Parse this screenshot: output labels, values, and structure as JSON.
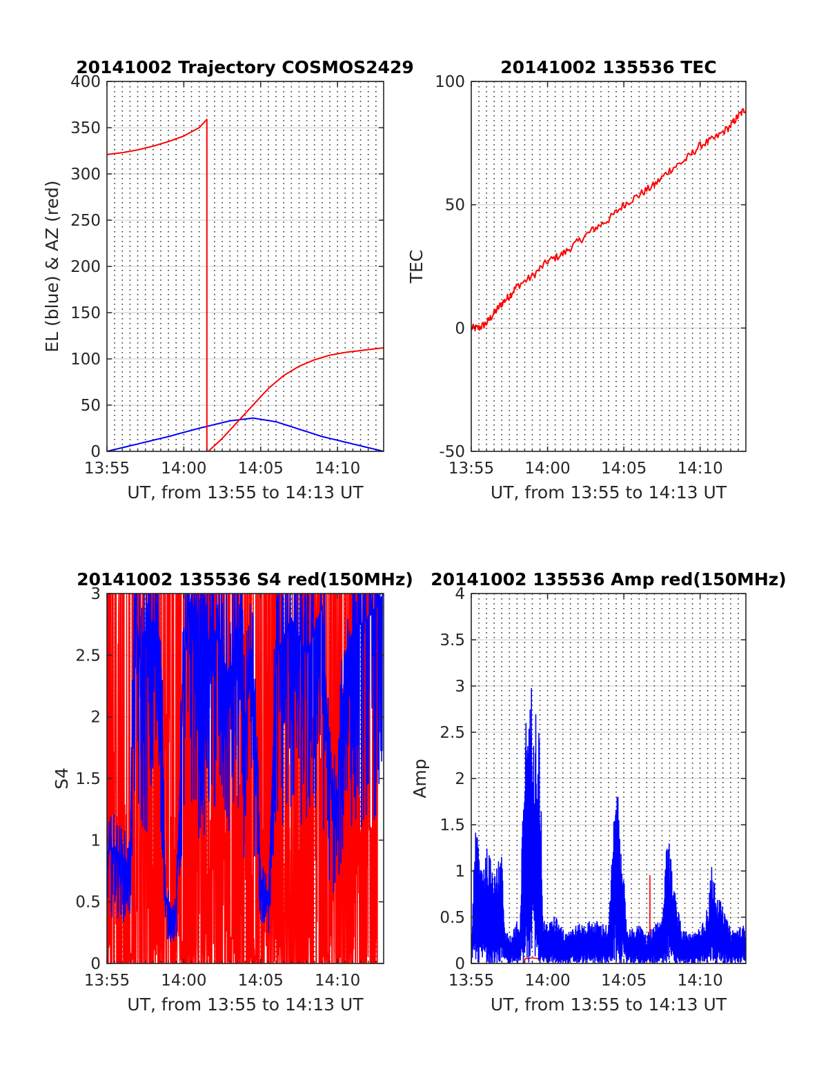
{
  "chart_data": [
    {
      "type": "line",
      "title": "20141002 Trajectory COSMOS2429",
      "xlabel": "UT, from 13:55 to 14:13 UT",
      "ylabel": "EL (blue) & AZ (red)",
      "x_unit": "minutes after 13:55 UT",
      "xlim": [
        0,
        18
      ],
      "ylim": [
        0,
        400
      ],
      "x_ticks": [
        {
          "value": 0,
          "label": "13:55"
        },
        {
          "value": 5,
          "label": "14:00"
        },
        {
          "value": 10,
          "label": "14:05"
        },
        {
          "value": 15,
          "label": "14:10"
        }
      ],
      "y_ticks": [
        {
          "value": 0,
          "label": "0"
        },
        {
          "value": 50,
          "label": "50"
        },
        {
          "value": 100,
          "label": "100"
        },
        {
          "value": 150,
          "label": "150"
        },
        {
          "value": 200,
          "label": "200"
        },
        {
          "value": 250,
          "label": "250"
        },
        {
          "value": 300,
          "label": "300"
        },
        {
          "value": 350,
          "label": "350"
        },
        {
          "value": 400,
          "label": "400"
        }
      ],
      "grid": {
        "x": "dotted every 0.5 min",
        "y": "solid light"
      },
      "series": [
        {
          "color": "#0000ff",
          "x": [
            0,
            2,
            4,
            6,
            8,
            9.5,
            11,
            12.5,
            14,
            16,
            18
          ],
          "y": [
            0,
            8,
            16,
            25,
            33,
            36,
            32,
            24,
            16,
            8,
            0
          ]
        },
        {
          "color": "#ff0000",
          "x": [
            0,
            1,
            2,
            3,
            4,
            5,
            6,
            6.5,
            6.5,
            6.6,
            7.5,
            8.5,
            9.5,
            10.5,
            11.5,
            12.5,
            13.5,
            14.5,
            15.5,
            16.5,
            17.5,
            18
          ],
          "y": [
            321,
            323,
            326,
            330,
            335,
            341,
            350,
            359,
            0,
            0,
            14,
            32,
            50,
            68,
            82,
            92,
            99,
            104,
            107,
            109,
            111,
            112
          ]
        }
      ]
    },
    {
      "type": "line",
      "title": "20141002 135536 TEC",
      "xlabel": "UT, from 13:55 to 14:13 UT",
      "ylabel": "TEC",
      "x_unit": "minutes after 13:55 UT",
      "xlim": [
        0,
        18
      ],
      "ylim": [
        -50,
        100
      ],
      "x_ticks": [
        {
          "value": 0,
          "label": "13:55"
        },
        {
          "value": 5,
          "label": "14:00"
        },
        {
          "value": 10,
          "label": "14:05"
        },
        {
          "value": 15,
          "label": "14:10"
        }
      ],
      "y_ticks": [
        {
          "value": -50,
          "label": "-50"
        },
        {
          "value": 0,
          "label": "0"
        },
        {
          "value": 50,
          "label": "50"
        },
        {
          "value": 100,
          "label": "100"
        }
      ],
      "grid": {
        "x": "dotted every 0.5 min",
        "y": "solid light"
      },
      "series": [
        {
          "color": "#ff0000",
          "x": [
            0,
            0.5,
            1,
            1.5,
            2,
            2.5,
            3,
            4,
            5,
            6,
            7,
            8,
            9,
            10,
            11,
            12,
            13,
            14,
            15,
            16,
            17,
            17.5,
            18
          ],
          "y": [
            0,
            0,
            2,
            6,
            10,
            13,
            17,
            21,
            27,
            30,
            35,
            40,
            44,
            50,
            54,
            58,
            64,
            68,
            74,
            77,
            82,
            86,
            89
          ]
        }
      ]
    },
    {
      "type": "line",
      "title": "20141002 135536 S4 red(150MHz)",
      "xlabel": "UT, from 13:55 to 14:13 UT",
      "ylabel": "S4",
      "x_unit": "minutes after 13:55 UT",
      "xlim": [
        0,
        18
      ],
      "ylim": [
        0,
        3
      ],
      "x_ticks": [
        {
          "value": 0,
          "label": "13:55"
        },
        {
          "value": 5,
          "label": "14:00"
        },
        {
          "value": 10,
          "label": "14:05"
        },
        {
          "value": 15,
          "label": "14:10"
        }
      ],
      "y_ticks": [
        {
          "value": 0,
          "label": "0"
        },
        {
          "value": 0.5,
          "label": "0.5"
        },
        {
          "value": 1,
          "label": "1"
        },
        {
          "value": 1.5,
          "label": "1.5"
        },
        {
          "value": 2,
          "label": "2"
        },
        {
          "value": 2.5,
          "label": "2.5"
        },
        {
          "value": 3,
          "label": "3"
        }
      ],
      "grid": {
        "x": "dotted every 0.5 min",
        "y": "solid light"
      },
      "series": [
        {
          "color": "#ff0000",
          "x": [
            0,
            0.8,
            1.6,
            2.4,
            3.2,
            4.0,
            4.8,
            5.6,
            6.4,
            7.2,
            8.0,
            8.8,
            9.6,
            10.4,
            11.2,
            12.0,
            12.8,
            13.6,
            14.4,
            15.2,
            16.0,
            16.8,
            17.6
          ],
          "y": [
            0.78,
            3.0,
            0.0,
            3.0,
            0.2,
            3.0,
            0.0,
            3.0,
            0.3,
            3.0,
            0.0,
            3.0,
            0.2,
            2.5,
            0.0,
            3.0,
            0.3,
            3.0,
            0.0,
            3.0,
            0.2,
            3.0,
            0.0
          ]
        },
        {
          "color": "#0000ff",
          "x": [
            0,
            0.5,
            1.0,
            1.5,
            1.8,
            2.2,
            3.0,
            3.5,
            3.8,
            4.0,
            4.3,
            4.5,
            5.0,
            5.5,
            6.0,
            7.0,
            8.0,
            8.5,
            9.0,
            9.5,
            10.0,
            10.5,
            11.0,
            12.0,
            13.0,
            14.0,
            14.5,
            15.0,
            15.5,
            16.0,
            17.0,
            18.0
          ],
          "y": [
            0.9,
            0.95,
            0.85,
            0.8,
            3.0,
            2.4,
            2.8,
            2.6,
            0.5,
            0.45,
            0.43,
            0.4,
            2.5,
            3.0,
            2.5,
            2.7,
            2.3,
            2.8,
            2.0,
            2.4,
            0.7,
            0.5,
            2.5,
            2.8,
            2.5,
            2.9,
            1.5,
            1.3,
            2.5,
            2.7,
            2.8,
            3.0
          ]
        }
      ]
    },
    {
      "type": "line",
      "title": "20141002 135536 Amp red(150MHz)",
      "xlabel": "UT, from 13:55 to 14:13 UT",
      "ylabel": "Amp",
      "x_unit": "minutes after 13:55 UT",
      "xlim": [
        0,
        18
      ],
      "ylim": [
        0,
        4
      ],
      "x_ticks": [
        {
          "value": 0,
          "label": "13:55"
        },
        {
          "value": 5,
          "label": "14:00"
        },
        {
          "value": 10,
          "label": "14:05"
        },
        {
          "value": 15,
          "label": "14:10"
        }
      ],
      "y_ticks": [
        {
          "value": 0,
          "label": "0"
        },
        {
          "value": 0.5,
          "label": "0.5"
        },
        {
          "value": 1,
          "label": "1"
        },
        {
          "value": 1.5,
          "label": "1.5"
        },
        {
          "value": 2,
          "label": "2"
        },
        {
          "value": 2.5,
          "label": "2.5"
        },
        {
          "value": 3,
          "label": "3"
        },
        {
          "value": 3.5,
          "label": "3.5"
        },
        {
          "value": 4,
          "label": "4"
        }
      ],
      "grid": {
        "x": "dotted every 0.5 min",
        "y": "solid light"
      },
      "series": [
        {
          "color": "#ff0000",
          "x": [
            0,
            3.5,
            3.51,
            4.0,
            4.5,
            4.51,
            11.7,
            11.71,
            11.72,
            18
          ],
          "y": [
            0,
            0,
            0.05,
            0.06,
            0.05,
            0,
            0,
            0.95,
            0,
            0
          ]
        },
        {
          "color": "#0000ff",
          "x": [
            0,
            0.2,
            0.4,
            0.6,
            1.0,
            1.5,
            2.0,
            2.2,
            2.5,
            3.0,
            3.2,
            3.5,
            3.8,
            4.0,
            4.2,
            4.5,
            4.7,
            5.0,
            5.5,
            6.0,
            7.0,
            8.0,
            9.0,
            9.5,
            9.7,
            10.0,
            10.2,
            10.5,
            11.0,
            11.5,
            12.0,
            12.5,
            12.8,
            13.0,
            13.3,
            13.8,
            14.5,
            15.0,
            15.5,
            15.8,
            16.2,
            17.0,
            18.0
          ],
          "y": [
            0.0,
            1.3,
            1.4,
            1.1,
            1.2,
            1.0,
            1.1,
            0.4,
            0.3,
            0.45,
            0.35,
            2.6,
            2.5,
            3.1,
            2.7,
            2.4,
            0.45,
            0.4,
            0.5,
            0.35,
            0.4,
            0.45,
            0.4,
            2.0,
            1.5,
            0.9,
            0.4,
            0.35,
            0.4,
            0.3,
            0.4,
            0.45,
            1.2,
            1.3,
            0.8,
            0.35,
            0.3,
            0.4,
            0.6,
            1.1,
            0.7,
            0.35,
            0.4
          ]
        }
      ]
    }
  ]
}
